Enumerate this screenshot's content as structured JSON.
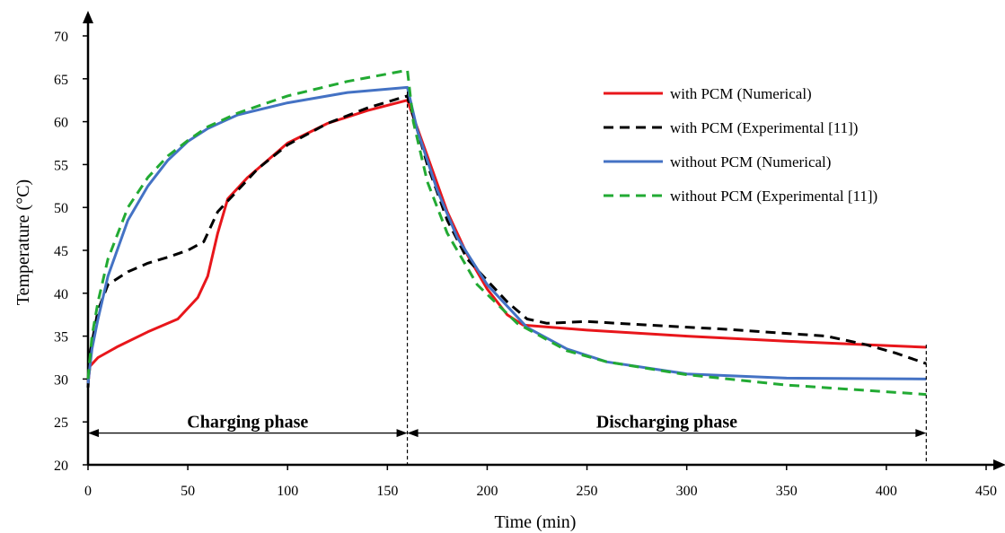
{
  "chart_data": {
    "type": "line",
    "title": "",
    "xlabel": "Time (min)",
    "ylabel": "Temperature (°C)",
    "xlim": [
      0,
      450
    ],
    "ylim": [
      20,
      70
    ],
    "xticks": [
      0,
      50,
      100,
      150,
      200,
      250,
      300,
      350,
      400,
      450
    ],
    "yticks": [
      20,
      25,
      30,
      35,
      40,
      45,
      50,
      55,
      60,
      65,
      70
    ],
    "grid": false,
    "legend_position": "right",
    "annotations": {
      "charging": {
        "label": "Charging phase",
        "x_start": 0,
        "x_end": 160
      },
      "discharging": {
        "label": "Discharging phase",
        "x_start": 160,
        "x_end": 420
      },
      "phase_divider_x": 160,
      "end_divider_x": 420
    },
    "series": [
      {
        "name": "with PCM (Numerical)",
        "color": "#e8161b",
        "style": "solid",
        "points": [
          [
            0,
            29.5
          ],
          [
            1,
            31.5
          ],
          [
            5,
            32.5
          ],
          [
            15,
            33.8
          ],
          [
            30,
            35.5
          ],
          [
            45,
            37
          ],
          [
            55,
            39.5
          ],
          [
            60,
            42
          ],
          [
            65,
            47
          ],
          [
            70,
            51
          ],
          [
            80,
            53.5
          ],
          [
            90,
            55.5
          ],
          [
            100,
            57.5
          ],
          [
            120,
            59.8
          ],
          [
            140,
            61.3
          ],
          [
            160,
            62.5
          ],
          [
            170,
            56
          ],
          [
            180,
            49.5
          ],
          [
            190,
            44.5
          ],
          [
            200,
            40.5
          ],
          [
            210,
            37.5
          ],
          [
            218,
            36.3
          ],
          [
            250,
            35.7
          ],
          [
            300,
            35
          ],
          [
            350,
            34.4
          ],
          [
            400,
            33.9
          ],
          [
            420,
            33.7
          ]
        ]
      },
      {
        "name": "with PCM (Experimental [11])",
        "color": "#000000",
        "style": "dashed",
        "points": [
          [
            0,
            29
          ],
          [
            1,
            33
          ],
          [
            5,
            38
          ],
          [
            10,
            41
          ],
          [
            20,
            42.5
          ],
          [
            30,
            43.5
          ],
          [
            40,
            44.2
          ],
          [
            50,
            45
          ],
          [
            58,
            46
          ],
          [
            65,
            49.5
          ],
          [
            75,
            52
          ],
          [
            85,
            54.5
          ],
          [
            100,
            57.3
          ],
          [
            120,
            59.8
          ],
          [
            140,
            61.6
          ],
          [
            160,
            63
          ],
          [
            170,
            55
          ],
          [
            180,
            48.5
          ],
          [
            190,
            44
          ],
          [
            200,
            41.5
          ],
          [
            210,
            39
          ],
          [
            220,
            37
          ],
          [
            230,
            36.5
          ],
          [
            250,
            36.7
          ],
          [
            280,
            36.3
          ],
          [
            320,
            35.8
          ],
          [
            370,
            35
          ],
          [
            390,
            34
          ],
          [
            405,
            33
          ],
          [
            420,
            31.8
          ]
        ]
      },
      {
        "name": "without PCM (Numerical)",
        "color": "#4472c4",
        "style": "solid",
        "points": [
          [
            0,
            29.5
          ],
          [
            2,
            33.5
          ],
          [
            5,
            37
          ],
          [
            10,
            42
          ],
          [
            20,
            48.5
          ],
          [
            30,
            52.5
          ],
          [
            40,
            55.5
          ],
          [
            50,
            57.7
          ],
          [
            60,
            59.2
          ],
          [
            75,
            60.8
          ],
          [
            100,
            62.2
          ],
          [
            130,
            63.4
          ],
          [
            160,
            64
          ],
          [
            165,
            59
          ],
          [
            175,
            52
          ],
          [
            185,
            46.5
          ],
          [
            200,
            41
          ],
          [
            220,
            36
          ],
          [
            240,
            33.5
          ],
          [
            260,
            32
          ],
          [
            300,
            30.6
          ],
          [
            350,
            30.1
          ],
          [
            420,
            30
          ]
        ]
      },
      {
        "name": "without PCM (Experimental [11])",
        "color": "#22aa33",
        "style": "dashed",
        "points": [
          [
            0,
            30
          ],
          [
            2,
            35
          ],
          [
            5,
            39
          ],
          [
            10,
            44
          ],
          [
            20,
            50
          ],
          [
            30,
            53.5
          ],
          [
            40,
            56
          ],
          [
            50,
            57.8
          ],
          [
            60,
            59.4
          ],
          [
            75,
            61
          ],
          [
            100,
            63
          ],
          [
            130,
            64.7
          ],
          [
            160,
            66
          ],
          [
            163,
            60
          ],
          [
            170,
            53
          ],
          [
            180,
            47
          ],
          [
            195,
            41
          ],
          [
            215,
            36.5
          ],
          [
            240,
            33.3
          ],
          [
            260,
            32
          ],
          [
            300,
            30.5
          ],
          [
            350,
            29.3
          ],
          [
            420,
            28.2
          ]
        ]
      }
    ]
  }
}
